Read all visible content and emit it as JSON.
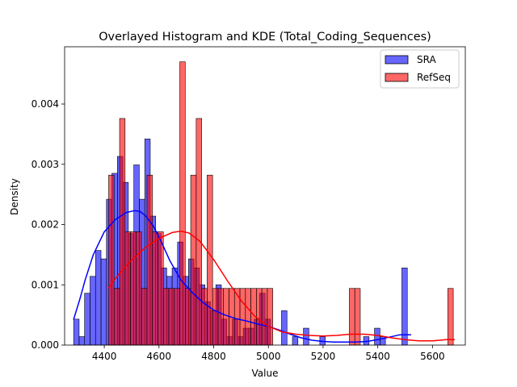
{
  "chart_data": {
    "type": "bar",
    "title": "Overlayed Histogram and KDE (Total_Coding_Sequences)",
    "xlabel": "Value",
    "ylabel": "Density",
    "xlim": [
      4255,
      5720
    ],
    "ylim": [
      0,
      0.00495
    ],
    "xticks": [
      4400,
      4600,
      4800,
      5000,
      5200,
      5400,
      5600
    ],
    "yticks": [
      0.0,
      0.001,
      0.002,
      0.003,
      0.004
    ],
    "ytick_labels": [
      "0.000",
      "0.001",
      "0.002",
      "0.003",
      "0.004"
    ],
    "grid": false,
    "legend_position": "top-right",
    "series": [
      {
        "name": "SRA",
        "kind": "histogram",
        "color": "#0000ff",
        "bin_edges": [
          4288,
          4308,
          4328,
          4348,
          4368,
          4388,
          4408,
          4428,
          4448,
          4468,
          4488,
          4508,
          4528,
          4548,
          4568,
          4588,
          4608,
          4628,
          4648,
          4668,
          4688,
          4708,
          4728,
          4748,
          4768,
          4788,
          4808,
          4828,
          4848,
          4868,
          4888,
          4908,
          4928,
          4948,
          4968,
          4988,
          5008,
          5028,
          5048,
          5068,
          5088,
          5108,
          5128,
          5148,
          5168,
          5188,
          5208,
          5228,
          5248,
          5268,
          5288,
          5308,
          5328,
          5348,
          5368,
          5388,
          5408,
          5428,
          5448,
          5468,
          5488,
          5508,
          5528
        ],
        "values": [
          0.00043,
          0.00014,
          0.00086,
          0.00114,
          0.00157,
          0.00143,
          0.00242,
          0.00285,
          0.00313,
          0.0027,
          0.00185,
          0.00299,
          0.00242,
          0.00342,
          0.00214,
          0.00185,
          0.00128,
          0.00114,
          0.00128,
          0.00171,
          0.00114,
          0.00143,
          0.00128,
          0.001,
          0.00072,
          0.00057,
          0.001,
          0.00043,
          0.00014,
          0.00043,
          0.00014,
          0.00028,
          0.00028,
          0.00043,
          0.00086,
          0.00043,
          0,
          0,
          0.00057,
          0,
          0.00014,
          0,
          0.00028,
          0,
          0,
          0.00014,
          0,
          0,
          0,
          0,
          0,
          0,
          0,
          0.00014,
          0,
          0.00028,
          0.00014,
          0,
          0,
          0,
          0.00128,
          0
        ]
      },
      {
        "name": "RefSeq",
        "kind": "histogram",
        "color": "#ff0000",
        "bin_edges": [
          4416,
          4436,
          4456,
          4476,
          4496,
          4516,
          4536,
          4556,
          4576,
          4596,
          4616,
          4636,
          4656,
          4676,
          4696,
          4716,
          4736,
          4756,
          4776,
          4796,
          4816,
          4836,
          4856,
          4876,
          4896,
          4916,
          4936,
          4956,
          4976,
          4996,
          5016,
          5036,
          5056,
          5076,
          5096,
          5116,
          5136,
          5156,
          5176,
          5196,
          5216,
          5236,
          5256,
          5276,
          5296,
          5316,
          5336,
          5356,
          5376,
          5396,
          5416,
          5436,
          5456,
          5476,
          5496,
          5516,
          5536,
          5556,
          5576,
          5596,
          5616,
          5636,
          5656,
          5676,
          5696
        ],
        "values": [
          0.00282,
          0.00094,
          0.00376,
          0.00188,
          0.00188,
          0.00188,
          0.00094,
          0.00282,
          0.00188,
          0.00188,
          0.00094,
          0.00094,
          0.00094,
          0.0047,
          0.00094,
          0.00282,
          0.00376,
          0.00094,
          0.00282,
          0.00094,
          0.00094,
          0.00094,
          0.00094,
          0.00094,
          0.00094,
          0.00094,
          0.00094,
          0.00094,
          0.00094,
          0.00094,
          0,
          0,
          0,
          0,
          0,
          0,
          0,
          0,
          0,
          0,
          0,
          0,
          0,
          0,
          0.00094,
          0.00094,
          0,
          0,
          0,
          0,
          0,
          0,
          0,
          0,
          0,
          0,
          0,
          0,
          0,
          0,
          0,
          0,
          0.00094,
          0
        ]
      },
      {
        "name": "SRA",
        "kind": "kde",
        "color": "#0000ff",
        "x": [
          4288,
          4310,
          4330,
          4360,
          4400,
          4440,
          4480,
          4510,
          4530,
          4550,
          4580,
          4610,
          4640,
          4680,
          4720,
          4760,
          4800,
          4840,
          4880,
          4920,
          4960,
          5000,
          5040,
          5080,
          5120,
          5160,
          5200,
          5240,
          5280,
          5320,
          5360,
          5400,
          5440,
          5480,
          5520
        ],
        "y": [
          0.00043,
          0.00075,
          0.00108,
          0.0015,
          0.00188,
          0.00208,
          0.0022,
          0.00223,
          0.00222,
          0.00215,
          0.00197,
          0.0017,
          0.0014,
          0.00108,
          0.00088,
          0.00071,
          0.00058,
          0.0005,
          0.00044,
          0.0004,
          0.00035,
          0.00031,
          0.00025,
          0.00018,
          0.00012,
          8e-05,
          6e-05,
          5e-05,
          5e-05,
          5e-05,
          6e-05,
          9e-05,
          0.00013,
          0.00017,
          0.00017
        ]
      },
      {
        "name": "RefSeq",
        "kind": "kde",
        "color": "#ff0000",
        "x": [
          4416,
          4450,
          4500,
          4550,
          4600,
          4650,
          4680,
          4710,
          4750,
          4800,
          4850,
          4900,
          4950,
          5000,
          5050,
          5100,
          5150,
          5200,
          5250,
          5300,
          5350,
          5400,
          5450,
          5500,
          5550,
          5600,
          5650,
          5680
        ],
        "y": [
          0.00095,
          0.00116,
          0.00141,
          0.00162,
          0.00177,
          0.00187,
          0.00189,
          0.00186,
          0.00172,
          0.00142,
          0.00107,
          0.00074,
          0.00048,
          0.00031,
          0.00022,
          0.00018,
          0.00016,
          0.00015,
          0.00016,
          0.00018,
          0.00018,
          0.00016,
          0.00012,
          9e-05,
          7e-05,
          7e-05,
          9e-05,
          9e-05
        ]
      }
    ],
    "legend": [
      {
        "label": "SRA",
        "color": "#0000ff"
      },
      {
        "label": "RefSeq",
        "color": "#ff0000"
      }
    ]
  }
}
